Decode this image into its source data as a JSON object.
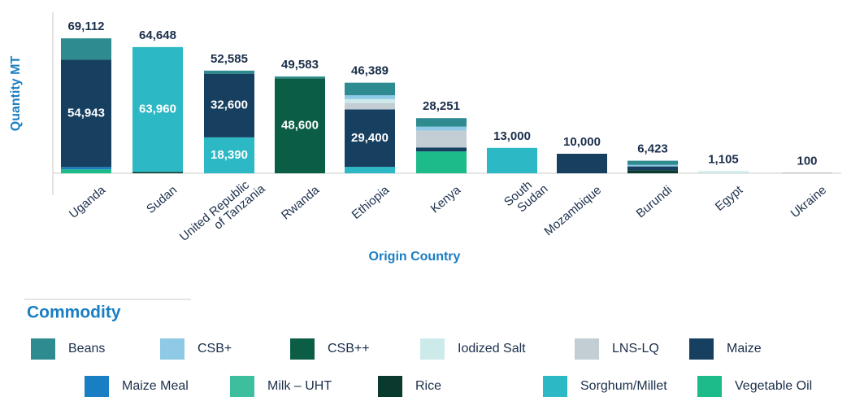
{
  "chart_data": {
    "type": "stacked_bar",
    "x_label": "Origin Country",
    "y_label": "Quantity MT",
    "categories": [
      "Uganda",
      "Sudan",
      "United Republic\nof Tanzania",
      "Rwanda",
      "Ethiopia",
      "Kenya",
      "South\nSudan",
      "Mozambique",
      "Burundi",
      "Egypt",
      "Ukraine"
    ],
    "ylim": [
      0,
      80000
    ],
    "legend_title": "Commodity",
    "series": [
      {
        "name": "Vegetable Oil",
        "color": "#1dba8a",
        "values": [
          2000,
          0,
          0,
          0,
          0,
          11200,
          0,
          0,
          0,
          0,
          0
        ]
      },
      {
        "name": "Milk – UHT",
        "color": "#3dbf9e",
        "values": [
          0,
          0,
          0,
          0,
          0,
          0,
          0,
          0,
          0,
          0,
          0
        ]
      },
      {
        "name": "Rice",
        "color": "#0a3a2e",
        "values": [
          0,
          688,
          0,
          0,
          0,
          0,
          0,
          0,
          1600,
          0,
          0
        ]
      },
      {
        "name": "CSB++",
        "color": "#0b5e45",
        "values": [
          0,
          0,
          0,
          48600,
          0,
          0,
          0,
          0,
          0,
          0,
          0
        ],
        "value_labels": [
          null,
          null,
          null,
          "48,600",
          null,
          null,
          null,
          null,
          null,
          null,
          null
        ]
      },
      {
        "name": "Sorghum/Millet",
        "color": "#2cb8c4",
        "values": [
          0,
          63960,
          18390,
          0,
          3300,
          0,
          13000,
          0,
          0,
          0,
          0
        ],
        "value_labels": [
          null,
          "63,960",
          "18,390",
          null,
          null,
          null,
          null,
          null,
          null,
          null,
          null
        ]
      },
      {
        "name": "Maize Meal",
        "color": "#1a7ec3",
        "values": [
          1200,
          0,
          0,
          0,
          0,
          0,
          0,
          0,
          0,
          0,
          0
        ]
      },
      {
        "name": "Maize",
        "color": "#163f60",
        "values": [
          54943,
          0,
          32600,
          0,
          29400,
          2000,
          0,
          10000,
          1900,
          0,
          100
        ],
        "value_labels": [
          "54,943",
          null,
          "32,600",
          null,
          "29,400",
          null,
          null,
          null,
          null,
          null,
          null
        ]
      },
      {
        "name": "LNS-LQ",
        "color": "#c3cdd4",
        "values": [
          0,
          0,
          0,
          0,
          3300,
          8700,
          0,
          0,
          0,
          0,
          0
        ]
      },
      {
        "name": "Iodized Salt",
        "color": "#cdeaea",
        "values": [
          0,
          0,
          0,
          0,
          2000,
          0,
          0,
          0,
          0,
          1105,
          0
        ]
      },
      {
        "name": "CSB+",
        "color": "#8ec9e6",
        "values": [
          0,
          0,
          0,
          0,
          2000,
          2000,
          0,
          0,
          800,
          0,
          0
        ]
      },
      {
        "name": "Beans",
        "color": "#2e8b8f",
        "values": [
          10969,
          0,
          1595,
          983,
          6389,
          4351,
          0,
          0,
          2123,
          0,
          0
        ]
      }
    ],
    "totals": [
      69112,
      64648,
      52585,
      49583,
      46389,
      28251,
      13000,
      10000,
      6423,
      1105,
      100
    ],
    "total_labels": [
      "69,112",
      "64,648",
      "52,585",
      "49,583",
      "46,389",
      "28,251",
      "13,000",
      "10,000",
      "6,423",
      "1,105",
      "100"
    ],
    "legend_order": [
      10,
      9,
      3,
      8,
      7,
      6,
      5,
      1,
      2,
      4,
      0
    ]
  }
}
